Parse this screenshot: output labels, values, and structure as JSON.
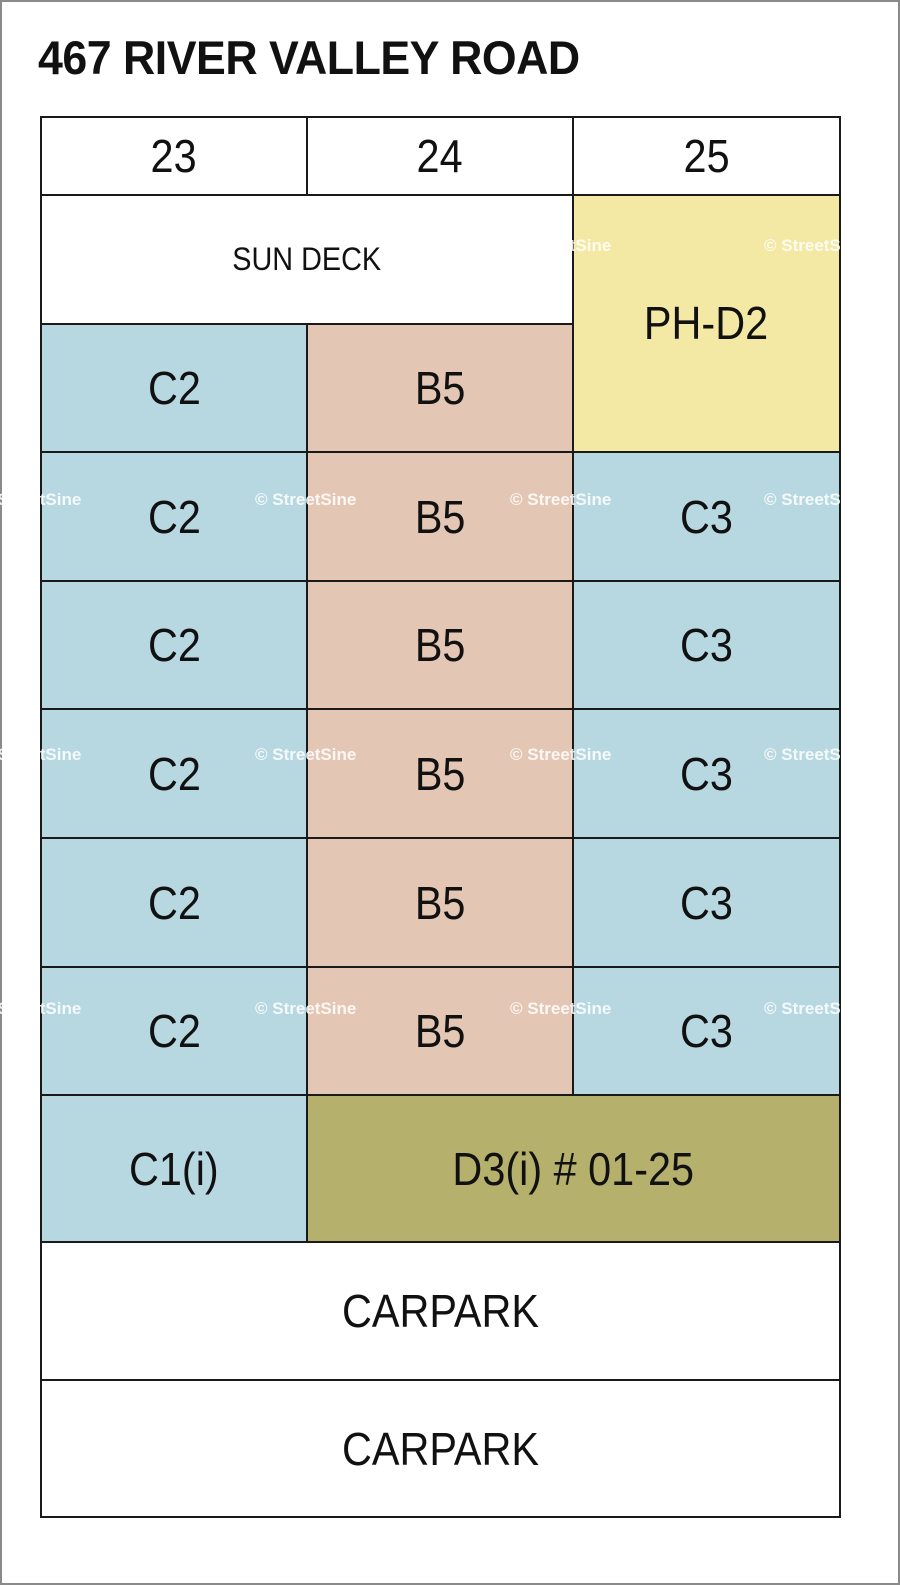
{
  "title": "467 RIVER VALLEY ROAD",
  "columns": [
    "23",
    "24",
    "25"
  ],
  "sun_deck": "SUN DECK",
  "penthouse": "PH-D2",
  "floors": [
    {
      "c23": "C2",
      "c24": "B5"
    },
    {
      "c23": "C2",
      "c24": "B5",
      "c25": "C3"
    },
    {
      "c23": "C2",
      "c24": "B5",
      "c25": "C3"
    },
    {
      "c23": "C2",
      "c24": "B5",
      "c25": "C3"
    },
    {
      "c23": "C2",
      "c24": "B5",
      "c25": "C3"
    },
    {
      "c23": "C2",
      "c24": "B5",
      "c25": "C3"
    }
  ],
  "ground": {
    "c23": "C1(i)",
    "c24_25": "D3(i) # 01-25"
  },
  "carparks": [
    "CARPARK",
    "CARPARK"
  ],
  "watermark": "© StreetSine",
  "colors": {
    "C": "#b7d8e0",
    "B": "#e4c6b4",
    "PH": "#f3e8a4",
    "D3": "#b5b06c",
    "blank": "#ffffff"
  }
}
